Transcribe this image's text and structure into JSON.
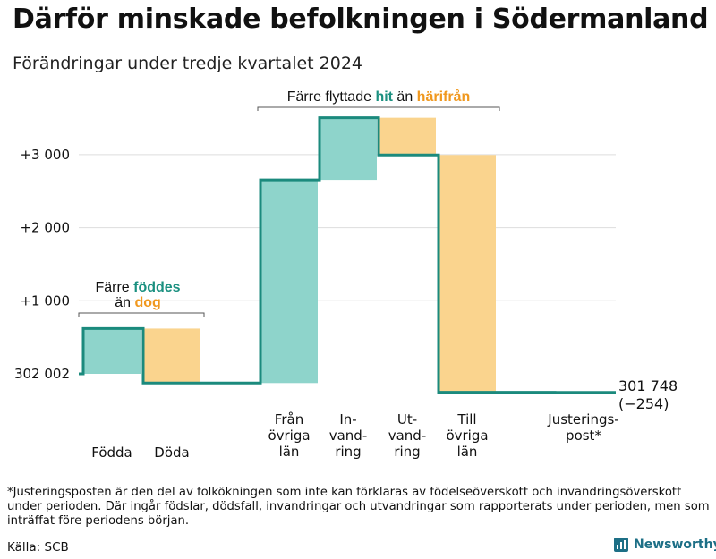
{
  "title": "Därför minskade befolkningen i Södermanland",
  "subtitle": "Förändringar under tredje kvartalet 2024",
  "footnote": "*Justeringsposten är den del av folkökningen som inte kan förklaras av födelseöverskott och invandringsöverskott under perioden. Där ingår födslar, dödsfall, invandringar och utvandringar som rapporterats under perioden, men som inträffat före periodens början.",
  "source": "Källa: SCB",
  "brand": "Newsworthy",
  "colors": {
    "teal": "#8ed4cb",
    "orange": "#fad48e",
    "line": "#1b8a7d",
    "teal_text": "#1b9080",
    "orange_text": "#f0981e",
    "grid": "#dddddd"
  },
  "chart_data": {
    "type": "waterfall",
    "start_value": 302002,
    "end_value": 301748,
    "end_value_label": "301 748",
    "end_change_label": "(−254)",
    "yticks": [
      {
        "value": 0,
        "label": "302 002"
      },
      {
        "value": 1000,
        "label": "+1 000"
      },
      {
        "value": 2000,
        "label": "+2 000"
      },
      {
        "value": 3000,
        "label": "+3 000"
      }
    ],
    "ylim": [
      -350,
      3750
    ],
    "steps": [
      {
        "label": [
          "Födda"
        ],
        "delta": 619,
        "kind": "inflow"
      },
      {
        "label": [
          "Döda"
        ],
        "delta": -745,
        "kind": "outflow"
      },
      {
        "label": [
          "Från",
          "övriga",
          "län"
        ],
        "delta": 2781,
        "kind": "inflow"
      },
      {
        "label": [
          "In-",
          "vand-",
          "ring"
        ],
        "delta": 850,
        "kind": "inflow"
      },
      {
        "label": [
          "Ut-",
          "vand-",
          "ring"
        ],
        "delta": -510,
        "kind": "outflow"
      },
      {
        "label": [
          "Till",
          "övriga",
          "län"
        ],
        "delta": -3248,
        "kind": "outflow"
      },
      {
        "label": [
          "Justerings-",
          "post*"
        ],
        "delta": -1,
        "kind": "adjust"
      }
    ],
    "annotations": [
      {
        "lines": [
          [
            "Färre ",
            "plain"
          ],
          [
            "föddes",
            "teal"
          ],
          [
            "än ",
            "plain"
          ],
          [
            "dog",
            "orange"
          ]
        ],
        "layout": "two-line",
        "spans": [
          0,
          1
        ]
      },
      {
        "lines": [
          [
            "Färre flyttade ",
            "plain"
          ],
          [
            "hit",
            "teal"
          ],
          [
            " än ",
            "plain"
          ],
          [
            "härifrån",
            "orange"
          ]
        ],
        "layout": "one-line",
        "spans": [
          2,
          5
        ]
      }
    ]
  }
}
